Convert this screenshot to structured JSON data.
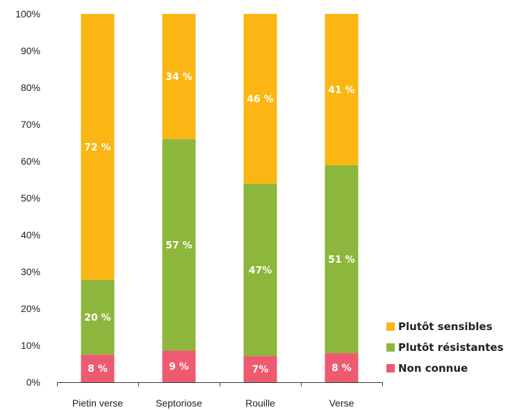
{
  "chart_data": {
    "type": "bar",
    "stacked": true,
    "categories": [
      "Pietin verse",
      "Septoriose",
      "Rouille",
      "Verse"
    ],
    "series": [
      {
        "name": "Non connue",
        "values": [
          7.5,
          8.6,
          7.1,
          7.9
        ],
        "labels": [
          "8 %",
          "9 %",
          "7%",
          "8 %"
        ],
        "color": "#EE5A6F"
      },
      {
        "name": "Plutôt résistantes",
        "values": [
          20.3,
          57.4,
          46.8,
          51.0
        ],
        "labels": [
          "20 %",
          "57 %",
          "47%",
          "51 %"
        ],
        "color": "#8DB63C"
      },
      {
        "name": "Plutôt sensibles",
        "values": [
          72.2,
          34.0,
          46.1,
          41.1
        ],
        "labels": [
          "72 %",
          "34 %",
          "46 %",
          "41 %"
        ],
        "color": "#FBB614"
      }
    ],
    "ylim": [
      0,
      100
    ],
    "yticks": [
      "0%",
      "10%",
      "20%",
      "30%",
      "40%",
      "50%",
      "60%",
      "70%",
      "80%",
      "90%",
      "100%"
    ],
    "grid": false,
    "legend_position": "bottom-right",
    "legend_order": [
      "Plutôt sensibles",
      "Plutôt résistantes",
      "Non connue"
    ],
    "title": "",
    "xlabel": "",
    "ylabel": ""
  }
}
